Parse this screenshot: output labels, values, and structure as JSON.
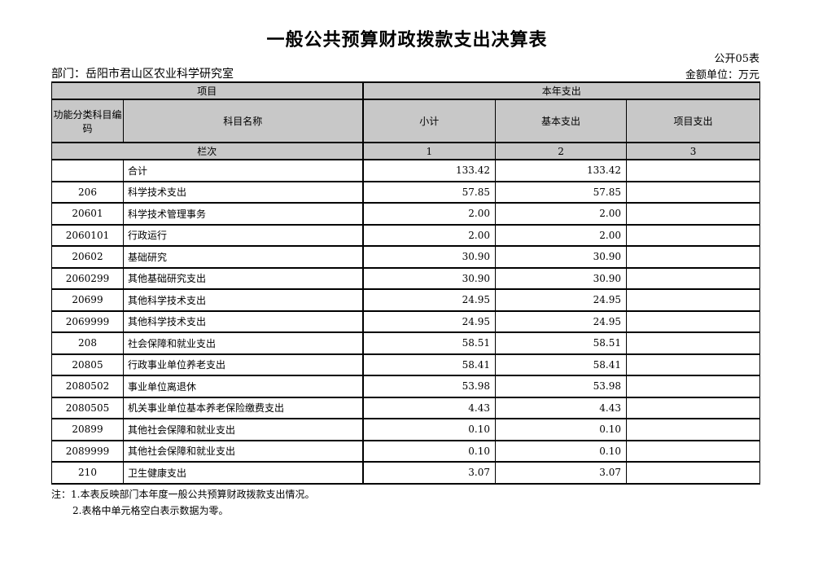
{
  "page": {
    "title": "一般公共预算财政拨款支出决算表",
    "sheet_code": "公开05表",
    "department": "部门：岳阳市君山区农业科学研究室",
    "unit": "金额单位：万元"
  },
  "table": {
    "header": {
      "group_item": "项目",
      "group_year": "本年支出",
      "col_code": "功能分类科目编码",
      "col_name": "科目名称",
      "col_subtotal": "小计",
      "col_basic": "基本支出",
      "col_project": "项目支出",
      "index_label": "栏次",
      "index_numbers": [
        "1",
        "2",
        "3"
      ]
    },
    "rows": [
      {
        "code": "",
        "name": "合计",
        "subtotal": "133.42",
        "basic": "133.42",
        "project": ""
      },
      {
        "code": "206",
        "name": "科学技术支出",
        "subtotal": "57.85",
        "basic": "57.85",
        "project": ""
      },
      {
        "code": "20601",
        "name": "科学技术管理事务",
        "subtotal": "2.00",
        "basic": "2.00",
        "project": ""
      },
      {
        "code": "2060101",
        "name": "行政运行",
        "subtotal": "2.00",
        "basic": "2.00",
        "project": ""
      },
      {
        "code": "20602",
        "name": "基础研究",
        "subtotal": "30.90",
        "basic": "30.90",
        "project": ""
      },
      {
        "code": "2060299",
        "name": "其他基础研究支出",
        "subtotal": "30.90",
        "basic": "30.90",
        "project": ""
      },
      {
        "code": "20699",
        "name": "其他科学技术支出",
        "subtotal": "24.95",
        "basic": "24.95",
        "project": ""
      },
      {
        "code": "2069999",
        "name": "其他科学技术支出",
        "subtotal": "24.95",
        "basic": "24.95",
        "project": ""
      },
      {
        "code": "208",
        "name": "社会保障和就业支出",
        "subtotal": "58.51",
        "basic": "58.51",
        "project": ""
      },
      {
        "code": "20805",
        "name": "行政事业单位养老支出",
        "subtotal": "58.41",
        "basic": "58.41",
        "project": ""
      },
      {
        "code": "2080502",
        "name": "事业单位离退休",
        "subtotal": "53.98",
        "basic": "53.98",
        "project": ""
      },
      {
        "code": "2080505",
        "name": "机关事业单位基本养老保险缴费支出",
        "subtotal": "4.43",
        "basic": "4.43",
        "project": ""
      },
      {
        "code": "20899",
        "name": "其他社会保障和就业支出",
        "subtotal": "0.10",
        "basic": "0.10",
        "project": ""
      },
      {
        "code": "2089999",
        "name": "其他社会保障和就业支出",
        "subtotal": "0.10",
        "basic": "0.10",
        "project": ""
      },
      {
        "code": "210",
        "name": "卫生健康支出",
        "subtotal": "3.07",
        "basic": "3.07",
        "project": ""
      }
    ]
  },
  "notes": {
    "prefix": "注：",
    "line1": "1.本表反映部门本年度一般公共预算财政拨款支出情况。",
    "line2": "2.表格中单元格空白表示数据为零。"
  },
  "colors": {
    "header_bg": "#c8c8c8",
    "border": "#000000"
  }
}
